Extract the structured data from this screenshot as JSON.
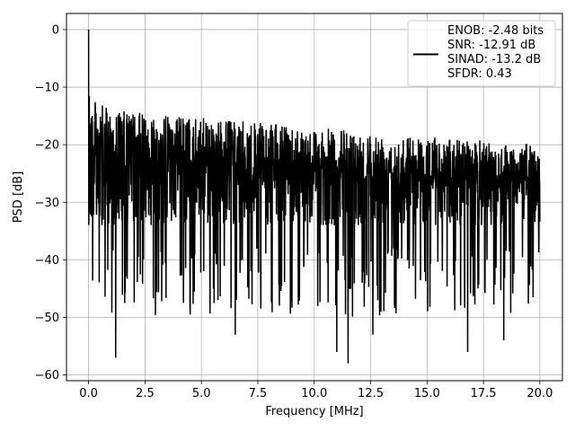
{
  "chart_data": {
    "type": "line",
    "title": "",
    "xlabel": "Frequency [MHz]",
    "ylabel": "PSD [dB]",
    "xlim": [
      -0.98,
      21.0
    ],
    "ylim": [
      -61.0,
      2.8
    ],
    "xticks": [
      0.0,
      2.5,
      5.0,
      7.5,
      10.0,
      12.5,
      15.0,
      17.5,
      20.0
    ],
    "xtick_labels": [
      "0.0",
      "2.5",
      "5.0",
      "7.5",
      "10.0",
      "12.5",
      "15.0",
      "17.5",
      "20.0"
    ],
    "yticks": [
      0,
      -10,
      -20,
      -30,
      -40,
      -50,
      -60
    ],
    "ytick_labels": [
      "0",
      "−10",
      "−20",
      "−30",
      "−40",
      "−50",
      "−60"
    ],
    "grid": true,
    "legend_position": "top-right",
    "series": [
      {
        "name": "ENOB: -2.48 bits\nSNR: -12.91 dB\nSINAD: -13.2 dB\nSFDR: 0.43",
        "color": "#000000",
        "x_range": [
          0.0,
          20.0
        ],
        "points": 2000,
        "peak": {
          "x": 0.0,
          "y": 0.0
        },
        "noise_floor_db": -28,
        "upper_envelope_db": {
          "near_dc": -12,
          "at_1mhz": -14,
          "mid_band": -17,
          "at_20mhz": -20
        },
        "deep_nulls": [
          {
            "x": 1.2,
            "y": -57
          },
          {
            "x": 11.5,
            "y": -58
          },
          {
            "x": 11.0,
            "y": -56
          },
          {
            "x": 16.8,
            "y": -56
          },
          {
            "x": 18.4,
            "y": -54
          },
          {
            "x": 6.5,
            "y": -53
          },
          {
            "x": 12.6,
            "y": -53
          }
        ]
      }
    ]
  },
  "legend": {
    "lines": [
      "ENOB: -2.48 bits",
      "SNR: -12.91 dB",
      "SINAD: -13.2 dB",
      "SFDR: 0.43"
    ],
    "line_color": "#000000"
  },
  "colors": {
    "grid": "#b0b0b0",
    "axes": "#000000",
    "background": "#ffffff"
  }
}
